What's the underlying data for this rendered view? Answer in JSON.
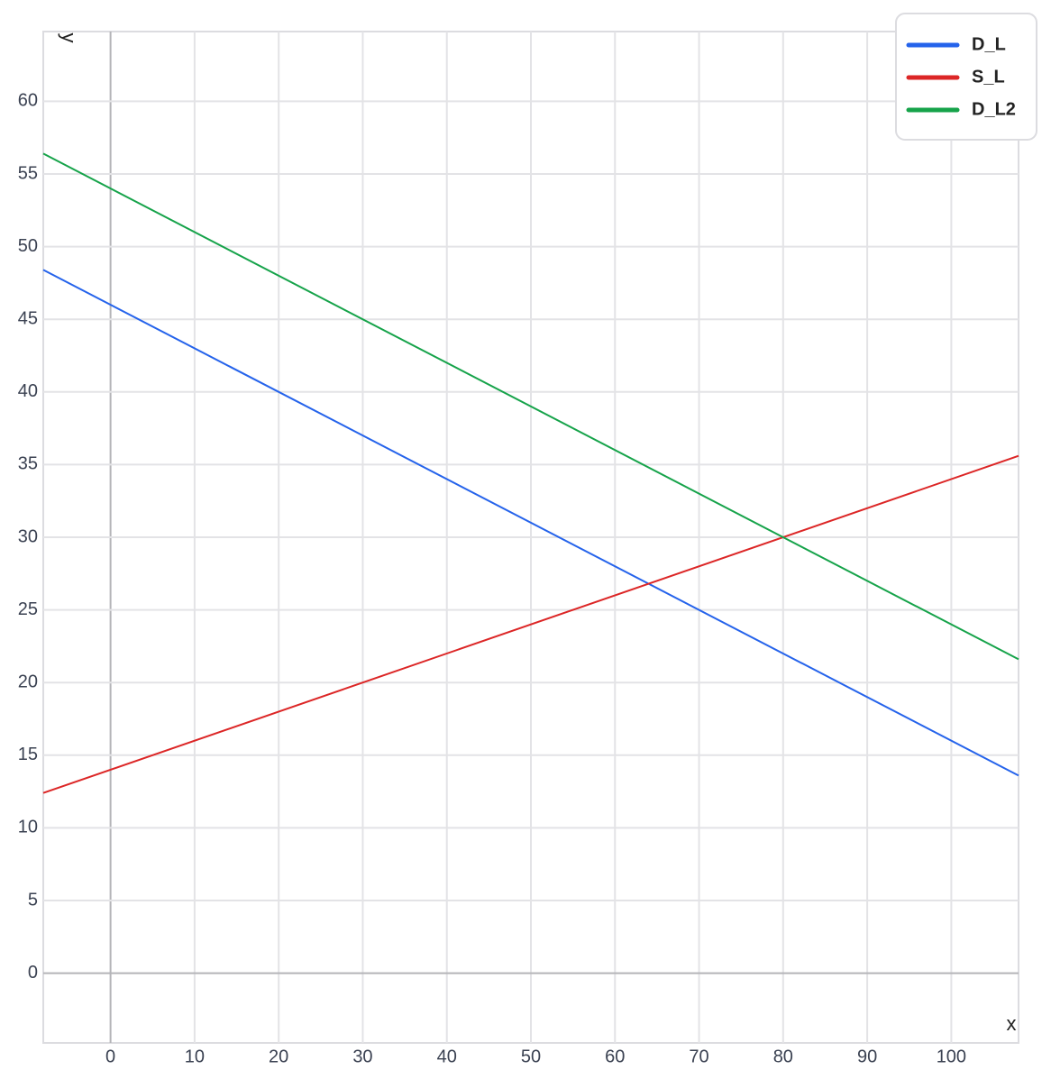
{
  "chart_data": {
    "type": "line",
    "x_label": "x",
    "y_label": "y",
    "x": [
      -8,
      108
    ],
    "series": [
      {
        "name": "D_L",
        "color": "#2563eb",
        "values": [
          48.4,
          13.6
        ]
      },
      {
        "name": "S_L",
        "color": "#dc2626",
        "values": [
          12.4,
          35.6
        ]
      },
      {
        "name": "D_L2",
        "color": "#16a34a",
        "values": [
          56.4,
          21.6
        ]
      }
    ],
    "xlim": [
      -8,
      108
    ],
    "ylim": [
      -4.8,
      64.8
    ],
    "xticks": [
      0,
      10,
      20,
      30,
      40,
      50,
      60,
      70,
      80,
      90,
      100
    ],
    "yticks": [
      0,
      5,
      10,
      15,
      20,
      25,
      30,
      35,
      40,
      45,
      50,
      55,
      60
    ],
    "grid": true,
    "legend": "top-right"
  }
}
